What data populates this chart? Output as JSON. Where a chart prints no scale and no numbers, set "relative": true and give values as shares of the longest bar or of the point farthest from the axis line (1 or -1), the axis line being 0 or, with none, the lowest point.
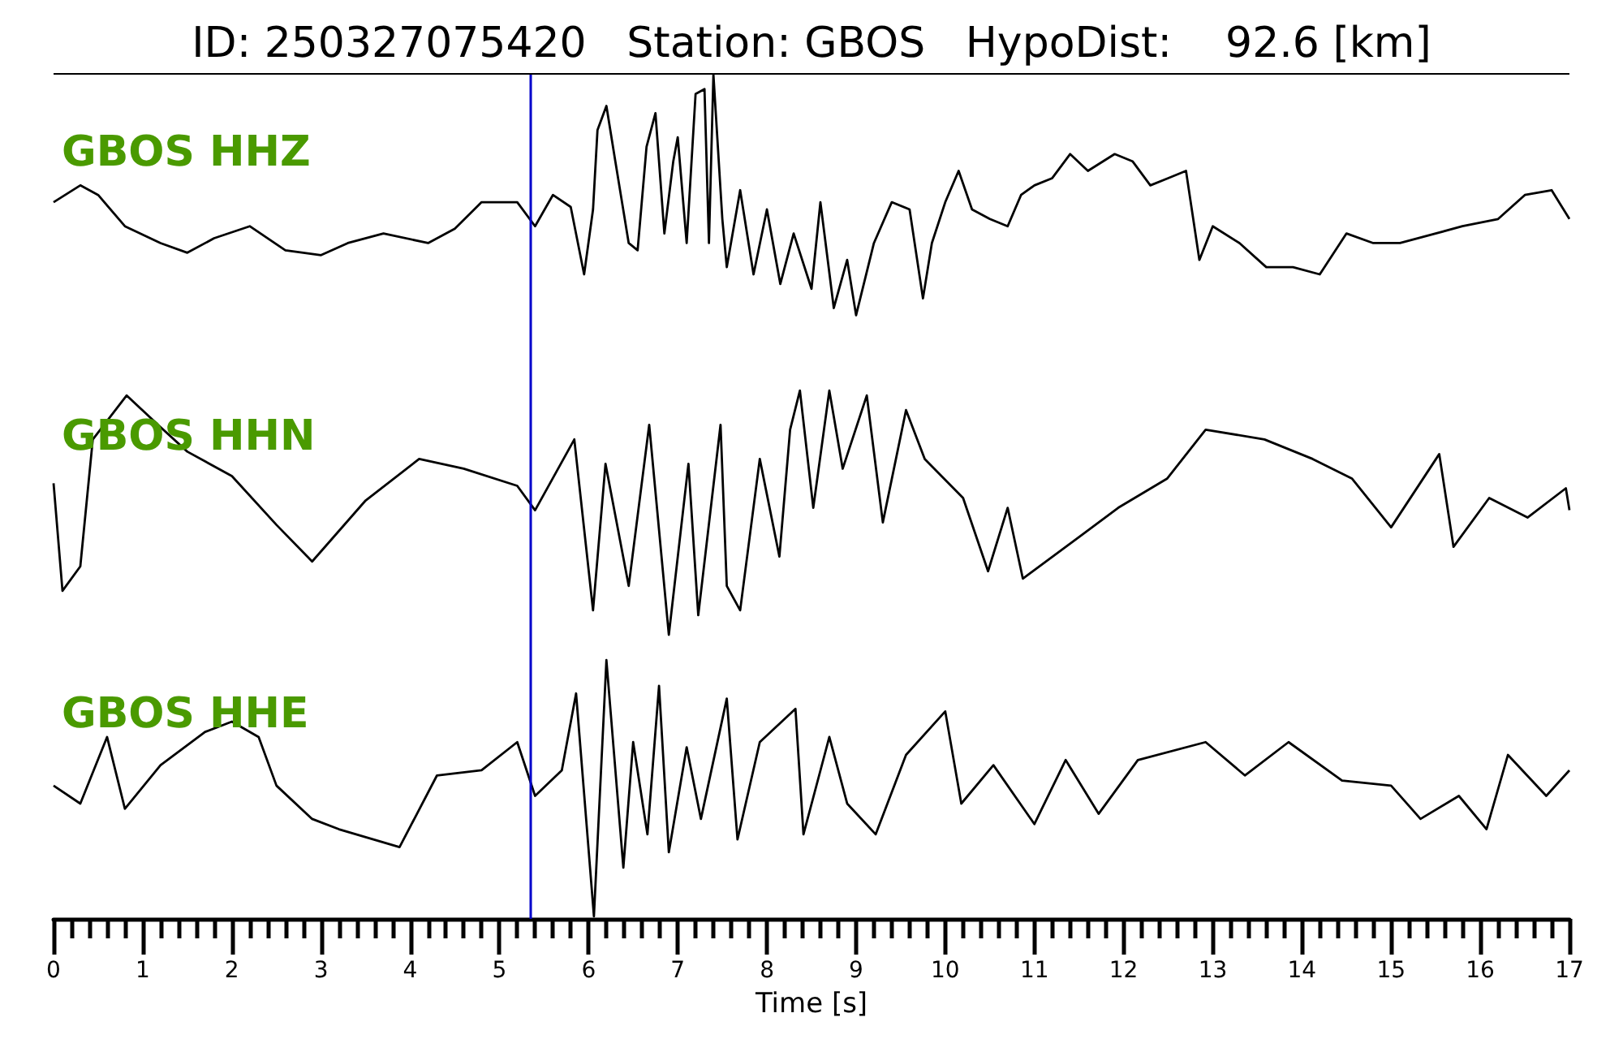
{
  "chart_data": [
    {
      "type": "line",
      "title": "ID: 250327075420   Station: GBOS   HypoDist:    92.6 [km]",
      "subtitle": "GBOS HHZ",
      "relative": true,
      "xlim": [
        0,
        17
      ],
      "tick_labels": false,
      "marker": "none",
      "line_style": "solid",
      "grid": false,
      "ref_lines": [
        {
          "axis": "x",
          "value": 5.35,
          "color": "#0000cc"
        }
      ],
      "series": [
        {
          "color": "#000000",
          "x": [
            0,
            0.3,
            0.5,
            0.8,
            1.2,
            1.5,
            1.8,
            2.2,
            2.6,
            3.0,
            3.3,
            3.7,
            4.2,
            4.5,
            4.8,
            5.2,
            5.4,
            5.6,
            5.8,
            5.95,
            6.05,
            6.1,
            6.2,
            6.3,
            6.45,
            6.55,
            6.65,
            6.75,
            6.85,
            6.95,
            7.0,
            7.1,
            7.2,
            7.3,
            7.35,
            7.4,
            7.5,
            7.55,
            7.7,
            7.85,
            8.0,
            8.15,
            8.3,
            8.5,
            8.6,
            8.75,
            8.9,
            9.0,
            9.2,
            9.4,
            9.6,
            9.75,
            9.85,
            10.0,
            10.15,
            10.3,
            10.5,
            10.7,
            10.85,
            11.0,
            11.2,
            11.4,
            11.6,
            11.9,
            12.1,
            12.3,
            12.5,
            12.7,
            12.85,
            13.0,
            13.3,
            13.6,
            13.9,
            14.2,
            14.5,
            14.8,
            15.1,
            15.5,
            15.8,
            16.2,
            16.5,
            16.8,
            17.0
          ],
          "values": [
            0.47,
            0.54,
            0.5,
            0.37,
            0.3,
            0.26,
            0.32,
            0.37,
            0.27,
            0.25,
            0.3,
            0.34,
            0.3,
            0.36,
            0.47,
            0.47,
            0.37,
            0.5,
            0.45,
            0.17,
            0.44,
            0.77,
            0.87,
            0.64,
            0.3,
            0.27,
            0.7,
            0.84,
            0.34,
            0.64,
            0.74,
            0.3,
            0.92,
            0.94,
            0.3,
            1.0,
            0.4,
            0.2,
            0.52,
            0.17,
            0.44,
            0.13,
            0.34,
            0.11,
            0.47,
            0.03,
            0.23,
            0,
            0.3,
            0.47,
            0.44,
            0.07,
            0.3,
            0.47,
            0.6,
            0.44,
            0.4,
            0.37,
            0.5,
            0.54,
            0.57,
            0.67,
            0.6,
            0.67,
            0.64,
            0.54,
            0.57,
            0.6,
            0.23,
            0.37,
            0.3,
            0.2,
            0.2,
            0.17,
            0.34,
            0.3,
            0.3,
            0.34,
            0.37,
            0.4,
            0.5,
            0.52,
            0.4
          ]
        }
      ]
    },
    {
      "type": "line",
      "subtitle": "GBOS HHN",
      "relative": true,
      "xlim": [
        0,
        17
      ],
      "tick_labels": false,
      "marker": "none",
      "line_style": "solid",
      "grid": false,
      "ref_lines": [
        {
          "axis": "x",
          "value": 5.35,
          "color": "#0000cc"
        }
      ],
      "series": [
        {
          "color": "#000000",
          "x": [
            0,
            0.1,
            0.3,
            0.44,
            0.82,
            1.2,
            1.5,
            2.0,
            2.5,
            2.9,
            3.5,
            4.1,
            4.6,
            5.2,
            5.4,
            5.84,
            6.05,
            6.19,
            6.45,
            6.68,
            6.9,
            7.12,
            7.23,
            7.48,
            7.55,
            7.7,
            7.92,
            8.14,
            8.26,
            8.37,
            8.52,
            8.7,
            8.85,
            9.12,
            9.3,
            9.56,
            9.77,
            10.2,
            10.48,
            10.7,
            10.87,
            11.5,
            11.94,
            12.49,
            12.92,
            13.58,
            14.12,
            14.56,
            15.0,
            15.54,
            15.7,
            16.1,
            16.53,
            16.96,
            17.0
          ],
          "values": [
            0.62,
            0.18,
            0.28,
            0.8,
            0.98,
            0.85,
            0.75,
            0.65,
            0.45,
            0.3,
            0.55,
            0.72,
            0.68,
            0.61,
            0.51,
            0.8,
            0.1,
            0.7,
            0.2,
            0.86,
            0,
            0.7,
            0.08,
            0.86,
            0.2,
            0.1,
            0.72,
            0.32,
            0.84,
            1.0,
            0.52,
            1.0,
            0.68,
            0.98,
            0.46,
            0.92,
            0.72,
            0.56,
            0.26,
            0.52,
            0.23,
            0.4,
            0.52,
            0.64,
            0.84,
            0.8,
            0.72,
            0.64,
            0.44,
            0.74,
            0.36,
            0.56,
            0.48,
            0.6,
            0.51
          ]
        }
      ]
    },
    {
      "type": "line",
      "subtitle": "GBOS HHE",
      "xlabel": "Time [s]",
      "relative": true,
      "xlim": [
        0,
        17
      ],
      "tick_labels": "x",
      "marker": "none",
      "line_style": "solid",
      "grid": false,
      "xticks": [
        0,
        {
          "value": 0.2,
          "label": null
        },
        {
          "value": 0.4,
          "label": null
        },
        {
          "value": 0.6,
          "label": null
        },
        {
          "value": 0.8,
          "label": null
        },
        1,
        {
          "value": 1.2,
          "label": null
        },
        {
          "value": 1.4,
          "label": null
        },
        {
          "value": 1.6,
          "label": null
        },
        {
          "value": 1.8,
          "label": null
        },
        2,
        {
          "value": 2.2,
          "label": null
        },
        {
          "value": 2.4,
          "label": null
        },
        {
          "value": 2.6,
          "label": null
        },
        {
          "value": 2.8,
          "label": null
        },
        3,
        {
          "value": 3.2,
          "label": null
        },
        {
          "value": 3.4,
          "label": null
        },
        {
          "value": 3.6,
          "label": null
        },
        {
          "value": 3.8,
          "label": null
        },
        4,
        {
          "value": 4.2,
          "label": null
        },
        {
          "value": 4.4,
          "label": null
        },
        {
          "value": 4.6,
          "label": null
        },
        {
          "value": 4.8,
          "label": null
        },
        5,
        {
          "value": 5.2,
          "label": null
        },
        {
          "value": 5.4,
          "label": null
        },
        {
          "value": 5.6,
          "label": null
        },
        {
          "value": 5.8,
          "label": null
        },
        6,
        {
          "value": 6.2,
          "label": null
        },
        {
          "value": 6.4,
          "label": null
        },
        {
          "value": 6.6,
          "label": null
        },
        {
          "value": 6.8,
          "label": null
        },
        7,
        {
          "value": 7.2,
          "label": null
        },
        {
          "value": 7.4,
          "label": null
        },
        {
          "value": 7.6,
          "label": null
        },
        {
          "value": 7.8,
          "label": null
        },
        8,
        {
          "value": 8.2,
          "label": null
        },
        {
          "value": 8.4,
          "label": null
        },
        {
          "value": 8.6,
          "label": null
        },
        {
          "value": 8.8,
          "label": null
        },
        9,
        {
          "value": 9.2,
          "label": null
        },
        {
          "value": 9.4,
          "label": null
        },
        {
          "value": 9.6,
          "label": null
        },
        {
          "value": 9.8,
          "label": null
        },
        10,
        {
          "value": 10.2,
          "label": null
        },
        {
          "value": 10.4,
          "label": null
        },
        {
          "value": 10.6,
          "label": null
        },
        {
          "value": 10.8,
          "label": null
        },
        11,
        {
          "value": 11.2,
          "label": null
        },
        {
          "value": 11.4,
          "label": null
        },
        {
          "value": 11.6,
          "label": null
        },
        {
          "value": 11.8,
          "label": null
        },
        12,
        {
          "value": 12.2,
          "label": null
        },
        {
          "value": 12.4,
          "label": null
        },
        {
          "value": 12.6,
          "label": null
        },
        {
          "value": 12.8,
          "label": null
        },
        13,
        {
          "value": 13.2,
          "label": null
        },
        {
          "value": 13.4,
          "label": null
        },
        {
          "value": 13.6,
          "label": null
        },
        {
          "value": 13.8,
          "label": null
        },
        14,
        {
          "value": 14.2,
          "label": null
        },
        {
          "value": 14.4,
          "label": null
        },
        {
          "value": 14.6,
          "label": null
        },
        {
          "value": 14.8,
          "label": null
        },
        15,
        {
          "value": 15.2,
          "label": null
        },
        {
          "value": 15.4,
          "label": null
        },
        {
          "value": 15.6,
          "label": null
        },
        {
          "value": 15.8,
          "label": null
        },
        16,
        {
          "value": 16.2,
          "label": null
        },
        {
          "value": 16.4,
          "label": null
        },
        {
          "value": 16.6,
          "label": null
        },
        {
          "value": 16.8,
          "label": null
        },
        17
      ],
      "ref_lines": [
        {
          "axis": "x",
          "value": 5.35,
          "color": "#0000cc"
        }
      ],
      "series": [
        {
          "color": "#000000",
          "x": [
            0,
            0.3,
            0.6,
            0.8,
            1.2,
            1.7,
            2.0,
            2.3,
            2.5,
            2.9,
            3.2,
            3.88,
            4.3,
            4.8,
            5.2,
            5.4,
            5.7,
            5.86,
            6.06,
            6.2,
            6.39,
            6.5,
            6.66,
            6.79,
            6.9,
            7.1,
            7.26,
            7.55,
            7.67,
            7.92,
            8.32,
            8.41,
            8.7,
            8.9,
            9.22,
            9.56,
            10.0,
            10.18,
            10.54,
            11.0,
            11.35,
            11.72,
            12.16,
            12.92,
            13.36,
            13.85,
            14.45,
            15.0,
            15.33,
            15.76,
            16.07,
            16.31,
            16.74,
            17.0
          ],
          "values": [
            0.51,
            0.44,
            0.7,
            0.42,
            0.59,
            0.72,
            0.76,
            0.7,
            0.51,
            0.38,
            0.34,
            0.27,
            0.55,
            0.57,
            0.68,
            0.47,
            0.57,
            0.87,
            0,
            1.0,
            0.19,
            0.68,
            0.32,
            0.9,
            0.25,
            0.66,
            0.38,
            0.85,
            0.3,
            0.68,
            0.81,
            0.32,
            0.7,
            0.44,
            0.32,
            0.63,
            0.8,
            0.44,
            0.59,
            0.36,
            0.61,
            0.4,
            0.61,
            0.68,
            0.55,
            0.68,
            0.53,
            0.51,
            0.38,
            0.47,
            0.34,
            0.63,
            0.47,
            0.57
          ]
        }
      ]
    }
  ]
}
